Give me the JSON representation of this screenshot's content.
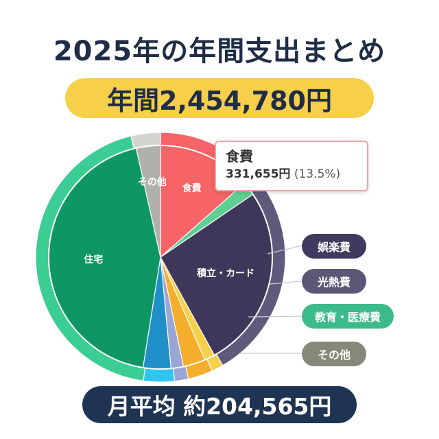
{
  "title": "2025年の年間支出まとめ",
  "total_label": "年間2,454,780円",
  "monthly_label": "月平均 約204,565円",
  "tooltip": {
    "title": "食費",
    "amount": "331,655円",
    "percent": "(13.5%)"
  },
  "legend": [
    {
      "label": "娯楽費",
      "color": "#3f3a5e"
    },
    {
      "label": "光熱費",
      "color": "#5b5776"
    },
    {
      "label": "教育・医療費",
      "color": "#3bbb8a"
    },
    {
      "label": "その他",
      "color": "#87877a"
    }
  ],
  "chart_data": {
    "type": "pie",
    "title": "",
    "inner_ring": [
      {
        "label": "食費",
        "value": 13.5,
        "color": "#f76468"
      },
      {
        "label": "",
        "value": 2.0,
        "color": "#5fcf94"
      },
      {
        "label": "積立・カード",
        "value": 26.5,
        "color": "#3e3759"
      },
      {
        "label": "",
        "value": 1.5,
        "color": "#f6d04a"
      },
      {
        "label": "",
        "value": 3.2,
        "color": "#f4ae2c"
      },
      {
        "label": "",
        "value": 1.8,
        "color": "#9aa6d6"
      },
      {
        "label": "",
        "value": 4.0,
        "color": "#1e8fc7"
      },
      {
        "label": "住宅",
        "value": 44.0,
        "color": "#0e9763"
      },
      {
        "label": "その他",
        "value": 3.5,
        "color": "#b0b0ac"
      }
    ],
    "outer_ring": [
      {
        "label": "",
        "value": 13.5,
        "color": "#f76468"
      },
      {
        "label": "",
        "value": 28.2,
        "color": "#5f5a7c"
      },
      {
        "label": "",
        "value": 1.5,
        "color": "#f6d04a"
      },
      {
        "label": "",
        "value": 3.2,
        "color": "#f4ae2c"
      },
      {
        "label": "",
        "value": 1.8,
        "color": "#9aa6d6"
      },
      {
        "label": "",
        "value": 4.0,
        "color": "#2ec6ef"
      },
      {
        "label": "",
        "value": 44.0,
        "color": "#3bcd93"
      },
      {
        "label": "",
        "value": 3.8,
        "color": "#d4d4d0"
      }
    ]
  }
}
